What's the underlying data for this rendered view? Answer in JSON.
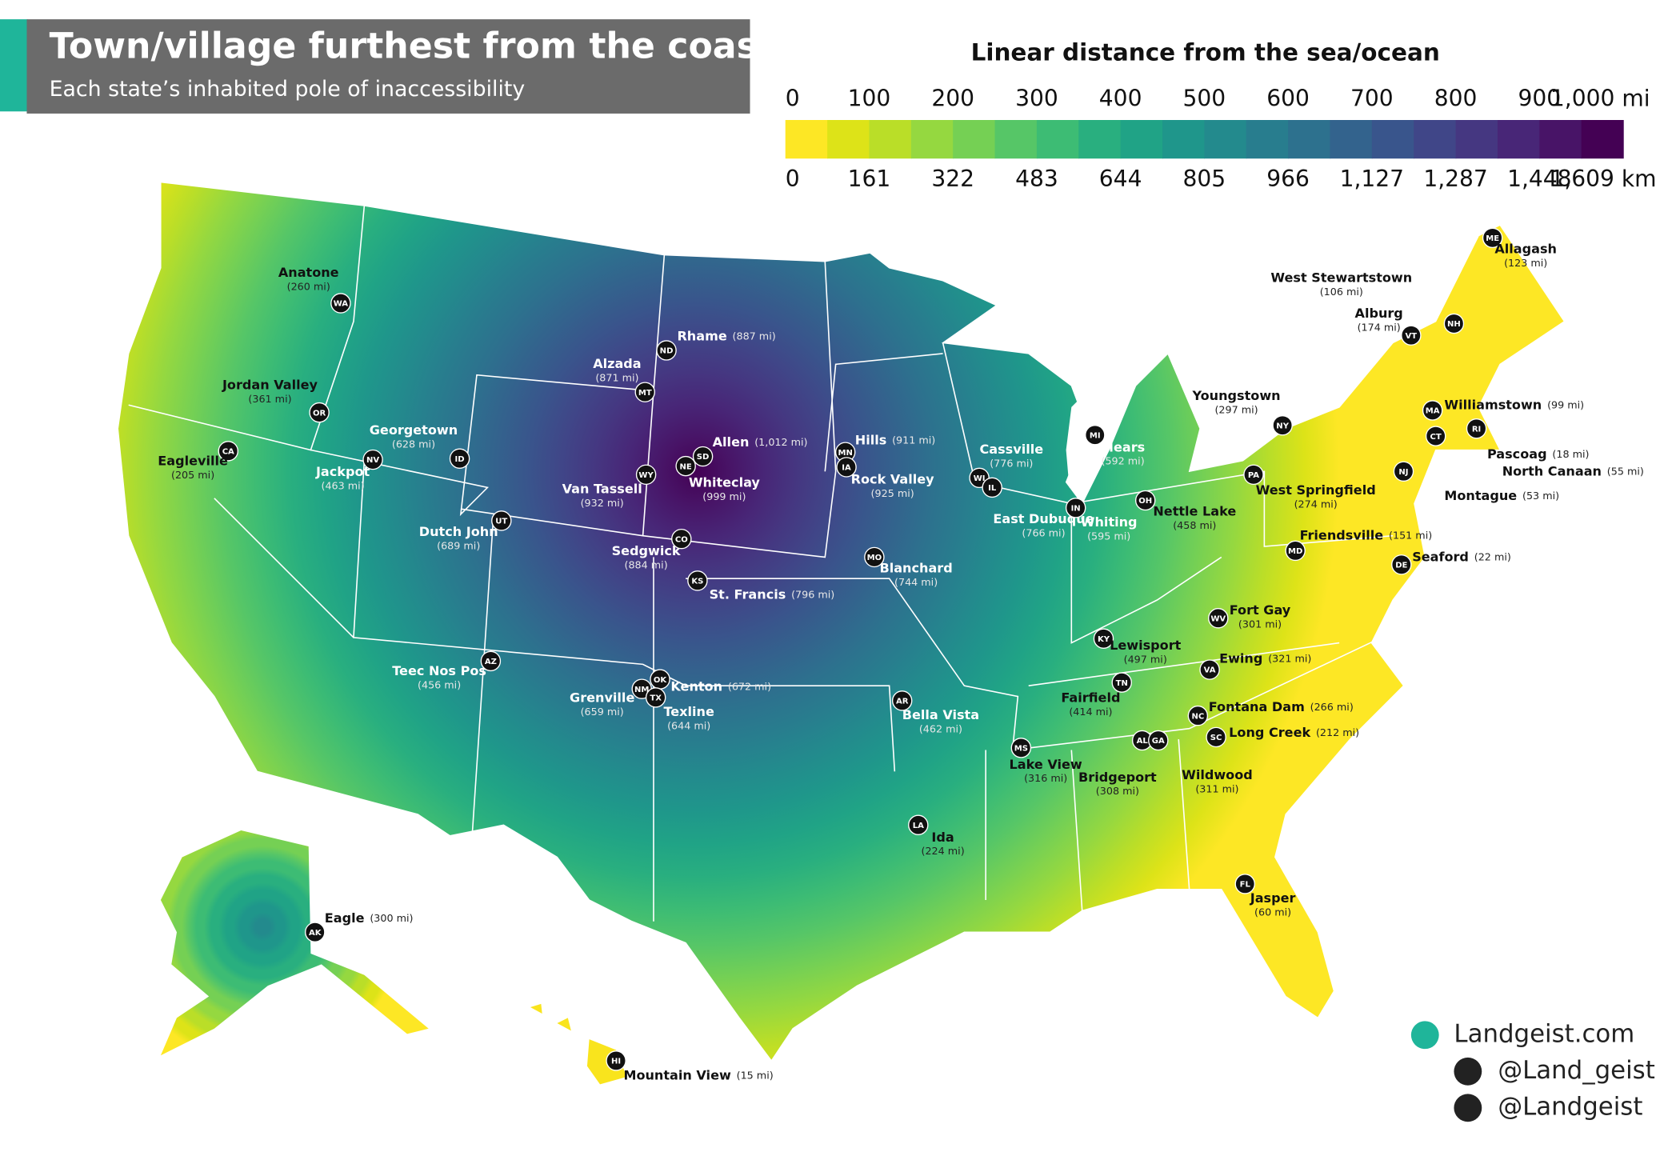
{
  "header": {
    "title": "Town/village furthest from the coast",
    "subtitle": "Each state’s inhabited pole of inaccessibility"
  },
  "legend": {
    "title": "Linear distance from the sea/ocean",
    "mi_labels": [
      "0",
      "100",
      "200",
      "300",
      "400",
      "500",
      "600",
      "700",
      "800",
      "900",
      "1,000 mi"
    ],
    "km_labels": [
      "0",
      "161",
      "322",
      "483",
      "644",
      "805",
      "966",
      "1,127",
      "1,287",
      "1,448",
      "1,609 km"
    ],
    "colors": [
      "#fde725",
      "#dde318",
      "#bade28",
      "#95d840",
      "#75d054",
      "#56c667",
      "#3dbc74",
      "#29af7f",
      "#20a386",
      "#1f968b",
      "#238a8d",
      "#287d8e",
      "#2d718e",
      "#33638d",
      "#39558c",
      "#404688",
      "#453781",
      "#482677",
      "#481467",
      "#440154"
    ]
  },
  "places": [
    {
      "state": "WA",
      "town": "Anatone",
      "distance": "(260 mi)"
    },
    {
      "state": "OR",
      "town": "Jordan Valley",
      "distance": "(361 mi)"
    },
    {
      "state": "CA",
      "town": "Eagleville",
      "distance": "(205 mi)"
    },
    {
      "state": "NV",
      "town": "Jackpot",
      "distance": "(463 mi)"
    },
    {
      "state": "ID",
      "town": "Georgetown",
      "distance": "(628 mi)"
    },
    {
      "state": "MT",
      "town": "Alzada",
      "distance": "(871 mi)"
    },
    {
      "state": "ND",
      "town": "Rhame",
      "distance": "(887 mi)"
    },
    {
      "state": "SD",
      "town": "Allen",
      "distance": "(1,012 mi)"
    },
    {
      "state": "NE",
      "town": "Whiteclay",
      "distance": "(999 mi)"
    },
    {
      "state": "WY",
      "town": "Van Tassell",
      "distance": "(932 mi)"
    },
    {
      "state": "MN",
      "town": "Hills",
      "distance": "(911 mi)"
    },
    {
      "state": "IA",
      "town": "Rock Valley",
      "distance": "(925 mi)"
    },
    {
      "state": "UT",
      "town": "Dutch John",
      "distance": "(689 mi)"
    },
    {
      "state": "CO",
      "town": "Sedgwick",
      "distance": "(884 mi)"
    },
    {
      "state": "KS",
      "town": "St. Francis",
      "distance": "(796 mi)"
    },
    {
      "state": "MO",
      "town": "Blanchard",
      "distance": "(744 mi)"
    },
    {
      "state": "WI",
      "town": "Cassville",
      "distance": "(776 mi)"
    },
    {
      "state": "IL",
      "town": "East Dubuque",
      "distance": "(766 mi)"
    },
    {
      "state": "MI",
      "town": "Mears",
      "distance": "(592 mi)"
    },
    {
      "state": "IN",
      "town": "Whiting",
      "distance": "(595 mi)"
    },
    {
      "state": "OH",
      "town": "Nettle Lake",
      "distance": "(458 mi)"
    },
    {
      "state": "NY",
      "town": "Youngstown",
      "distance": "(297 mi)"
    },
    {
      "state": "PA",
      "town": "West Springfield",
      "distance": "(274 mi)"
    },
    {
      "state": "AZ",
      "town": "Teec Nos Pos",
      "distance": "(456 mi)"
    },
    {
      "state": "NM",
      "town": "Grenville",
      "distance": "(659 mi)"
    },
    {
      "state": "OK",
      "town": "Kenton",
      "distance": "(672 mi)"
    },
    {
      "state": "TX",
      "town": "Texline",
      "distance": "(644 mi)"
    },
    {
      "state": "AR",
      "town": "Bella Vista",
      "distance": "(462 mi)"
    },
    {
      "state": "KY",
      "town": "Lewisport",
      "distance": "(497 mi)"
    },
    {
      "state": "TN",
      "town": "Fairfield",
      "distance": "(414 mi)"
    },
    {
      "state": "MS",
      "town": "Lake View",
      "distance": "(316 mi)"
    },
    {
      "state": "AL",
      "town": "Bridgeport",
      "distance": "(308 mi)"
    },
    {
      "state": "GA",
      "town": "Wildwood",
      "distance": "(311 mi)"
    },
    {
      "state": "LA",
      "town": "Ida",
      "distance": "(224 mi)"
    },
    {
      "state": "FL",
      "town": "Jasper",
      "distance": "(60 mi)"
    },
    {
      "state": "WV",
      "town": "Fort Gay",
      "distance": "(301 mi)"
    },
    {
      "state": "VA",
      "town": "Ewing",
      "distance": "(321 mi)"
    },
    {
      "state": "NC",
      "town": "Fontana Dam",
      "distance": "(266 mi)"
    },
    {
      "state": "SC",
      "town": "Long Creek",
      "distance": "(212 mi)"
    },
    {
      "state": "MD",
      "town": "Friendsville",
      "distance": "(151 mi)"
    },
    {
      "state": "DE",
      "town": "Seaford",
      "distance": "(22 mi)"
    },
    {
      "state": "NJ",
      "town": "Montague",
      "distance": "(53 mi)"
    },
    {
      "state": "CT",
      "town": "North Canaan",
      "distance": "(55 mi)"
    },
    {
      "state": "RI",
      "town": "Pascoag",
      "distance": "(18 mi)"
    },
    {
      "state": "MA",
      "town": "Williamstown",
      "distance": "(99 mi)"
    },
    {
      "state": "VT",
      "town": "Alburg",
      "distance": "(174 mi)"
    },
    {
      "state": "NH",
      "town": "West Stewartstown",
      "distance": "(106 mi)"
    },
    {
      "state": "ME",
      "town": "Allagash",
      "distance": "(123 mi)"
    },
    {
      "state": "AK",
      "town": "Eagle",
      "distance": "(300 mi)"
    },
    {
      "state": "HI",
      "town": "Mountain View",
      "distance": "(15 mi)"
    }
  ],
  "credits": {
    "site": "Landgeist.com",
    "instagram": "@Land_geist",
    "twitter": "@Landgeist"
  }
}
